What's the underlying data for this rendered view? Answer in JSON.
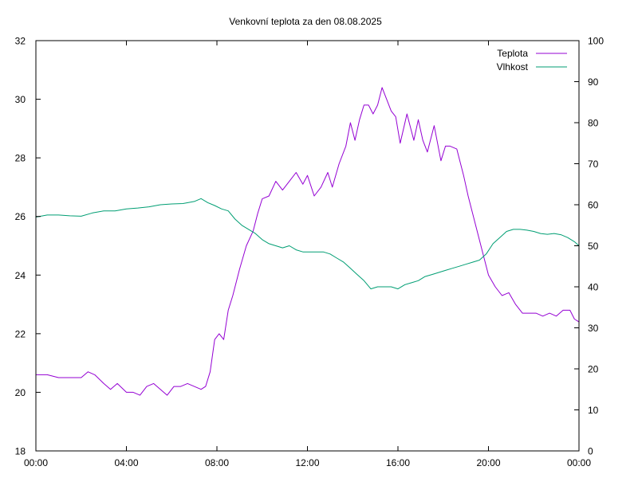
{
  "chart_data": {
    "type": "line",
    "title": "Venkovní teplota za den 08.08.2025",
    "xlabel": "",
    "ylabel": "",
    "y2label": "",
    "grid": false,
    "legend_position": "top-right",
    "x_ticks": [
      "00:00",
      "04:00",
      "08:00",
      "12:00",
      "16:00",
      "20:00",
      "00:00"
    ],
    "x_range_hours": [
      0,
      24
    ],
    "y_ticks": [
      "18",
      "20",
      "22",
      "24",
      "26",
      "28",
      "30",
      "32"
    ],
    "ylim": [
      18,
      32
    ],
    "y2_ticks": [
      "0",
      "10",
      "20",
      "30",
      "40",
      "50",
      "60",
      "70",
      "80",
      "90",
      "100"
    ],
    "y2lim": [
      0,
      100
    ],
    "series": [
      {
        "name": "Teplota",
        "axis": "left",
        "color": "#9400d3",
        "x": [
          0,
          0.5,
          1,
          1.5,
          2,
          2.3,
          2.6,
          3,
          3.3,
          3.6,
          4,
          4.3,
          4.6,
          4.9,
          5.2,
          5.5,
          5.8,
          6.1,
          6.4,
          6.7,
          7,
          7.3,
          7.5,
          7.7,
          7.9,
          8.1,
          8.3,
          8.5,
          8.7,
          9,
          9.3,
          9.6,
          9.8,
          10,
          10.3,
          10.6,
          10.9,
          11.2,
          11.5,
          11.8,
          12,
          12.3,
          12.6,
          12.9,
          13.1,
          13.4,
          13.7,
          13.9,
          14.1,
          14.3,
          14.5,
          14.7,
          14.9,
          15.1,
          15.3,
          15.5,
          15.7,
          15.9,
          16.1,
          16.4,
          16.7,
          16.9,
          17.1,
          17.3,
          17.6,
          17.9,
          18.1,
          18.3,
          18.6,
          18.9,
          19.1,
          19.4,
          19.7,
          20,
          20.3,
          20.6,
          20.9,
          21.2,
          21.5,
          21.8,
          22.1,
          22.4,
          22.7,
          23,
          23.3,
          23.6,
          23.8,
          24
        ],
        "values": [
          20.6,
          20.6,
          20.5,
          20.5,
          20.5,
          20.7,
          20.6,
          20.3,
          20.1,
          20.3,
          20.0,
          20.0,
          19.9,
          20.2,
          20.3,
          20.1,
          19.9,
          20.2,
          20.2,
          20.3,
          20.2,
          20.1,
          20.2,
          20.7,
          21.8,
          22.0,
          21.8,
          22.8,
          23.3,
          24.2,
          25.0,
          25.5,
          26.1,
          26.6,
          26.7,
          27.2,
          26.9,
          27.2,
          27.5,
          27.1,
          27.4,
          26.7,
          27.0,
          27.5,
          27.0,
          27.8,
          28.4,
          29.2,
          28.6,
          29.3,
          29.8,
          29.8,
          29.5,
          29.8,
          30.4,
          30.0,
          29.6,
          29.4,
          28.5,
          29.5,
          28.6,
          29.3,
          28.6,
          28.2,
          29.1,
          27.9,
          28.4,
          28.4,
          28.3,
          27.4,
          26.7,
          25.8,
          24.9,
          24.0,
          23.6,
          23.3,
          23.4,
          23.0,
          22.7,
          22.7,
          22.7,
          22.6,
          22.7,
          22.6,
          22.8,
          22.8,
          22.5,
          22.4
        ]
      },
      {
        "name": "Vlhkost",
        "axis": "right",
        "color": "#009e73",
        "x": [
          0,
          0.5,
          1,
          1.5,
          2,
          2.5,
          3,
          3.5,
          4,
          4.5,
          5,
          5.5,
          6,
          6.5,
          7,
          7.3,
          7.6,
          7.9,
          8.2,
          8.5,
          8.8,
          9.1,
          9.4,
          9.7,
          10,
          10.3,
          10.6,
          10.9,
          11.2,
          11.5,
          11.8,
          12.1,
          12.4,
          12.7,
          13,
          13.3,
          13.6,
          13.9,
          14.2,
          14.5,
          14.8,
          15.1,
          15.4,
          15.7,
          16,
          16.3,
          16.6,
          16.9,
          17.2,
          17.5,
          17.8,
          18.1,
          18.4,
          18.7,
          19,
          19.3,
          19.6,
          19.9,
          20.2,
          20.5,
          20.8,
          21.1,
          21.4,
          21.7,
          22,
          22.3,
          22.6,
          22.9,
          23.2,
          23.5,
          23.8,
          24
        ],
        "values": [
          57,
          57.5,
          57.5,
          57.3,
          57.2,
          58,
          58.5,
          58.5,
          59,
          59.2,
          59.5,
          60,
          60.2,
          60.3,
          60.8,
          61.5,
          60.5,
          59.8,
          59,
          58.5,
          56.5,
          55,
          54,
          53,
          51.5,
          50.5,
          50,
          49.5,
          50,
          49,
          48.5,
          48.5,
          48.5,
          48.5,
          48,
          47,
          46,
          44.5,
          43,
          41.5,
          39.5,
          40,
          40,
          40,
          39.5,
          40.5,
          41,
          41.5,
          42.5,
          43,
          43.5,
          44,
          44.5,
          45,
          45.5,
          46,
          46.5,
          48,
          50.5,
          52,
          53.5,
          54,
          54,
          53.8,
          53.5,
          53,
          52.8,
          53,
          52.7,
          52,
          51,
          50
        ]
      }
    ]
  }
}
